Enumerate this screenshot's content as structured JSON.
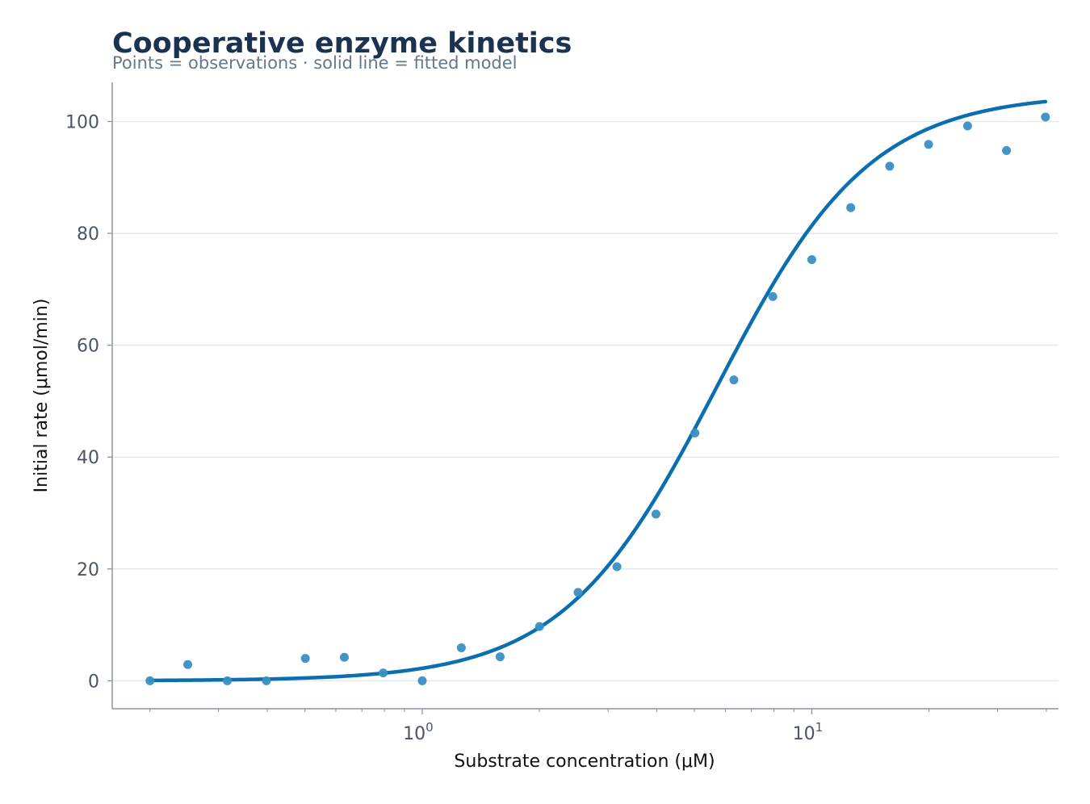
{
  "chart_data": {
    "type": "scatter",
    "title": "Cooperative enzyme kinetics",
    "subtitle": "Points = observations · solid line = fitted model",
    "xlabel": "Substrate concentration (μM)",
    "ylabel": "Initial rate (μmol/min)",
    "xscale": "log",
    "xlim": [
      0.16,
      43
    ],
    "ylim": [
      -5,
      107
    ],
    "grid": "horizontal",
    "legend": "none",
    "x_ticks": [
      {
        "base": "10",
        "exp": "0",
        "value": 1
      },
      {
        "base": "10",
        "exp": "1",
        "value": 10
      }
    ],
    "y_ticks": [
      0,
      20,
      40,
      60,
      80,
      100
    ],
    "series": [
      {
        "kind": "points",
        "color": "#3a8fc4",
        "x": [
          0.2,
          0.25,
          0.316,
          0.398,
          0.501,
          0.631,
          0.794,
          1.0,
          1.26,
          1.585,
          2.0,
          2.512,
          3.162,
          3.981,
          5.012,
          6.31,
          7.943,
          10.0,
          12.59,
          15.85,
          19.95,
          25.12,
          31.62,
          39.81
        ],
        "y": [
          0.0,
          2.9,
          0.0,
          0.0,
          4.0,
          4.2,
          1.4,
          0.0,
          5.9,
          4.3,
          9.7,
          15.8,
          20.4,
          29.8,
          44.3,
          53.8,
          68.7,
          75.3,
          84.6,
          92.0,
          95.9,
          99.2,
          94.8,
          100.8
        ]
      },
      {
        "kind": "line",
        "color": "#0a6eaf",
        "model": {
          "vmax": 105,
          "k": 5.7,
          "n": 2.2,
          "x_start": 0.2,
          "x_end": 39.81
        }
      }
    ]
  }
}
